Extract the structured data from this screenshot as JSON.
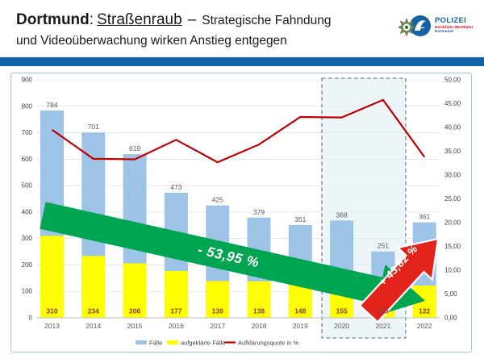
{
  "header": {
    "title_bold": "Dortmund",
    "title_colon": ":",
    "title_underlined": "Straßenraub",
    "title_dash": "–",
    "title_rest": "Strategische Fahndung",
    "title_line2": "und Videoüberwachung wirken Anstieg entgegen",
    "divider_color": "#1164a9"
  },
  "logo": {
    "org": "POLIZEI",
    "region": "Nordrhein-Westfalen",
    "city": "Dortmund",
    "blue": "#1464a5",
    "red": "#e2001a"
  },
  "chart_data": {
    "type": "bar",
    "subtype": "grouped overlay bars with secondary-axis line",
    "categories": [
      "2013",
      "2014",
      "2015",
      "2016",
      "2017",
      "2018",
      "2019",
      "2020",
      "2021",
      "2022"
    ],
    "series": [
      {
        "name": "Fälle",
        "type": "bar",
        "axis": "left",
        "color": "#9dc3e6",
        "values": [
          784,
          701,
          619,
          473,
          425,
          379,
          351,
          368,
          251,
          361
        ]
      },
      {
        "name": "aufgeklärte Fälle",
        "type": "bar",
        "axis": "left",
        "color": "#ffff00",
        "values": [
          310,
          234,
          206,
          177,
          139,
          138,
          148,
          155,
          115,
          122
        ]
      },
      {
        "name": "Aufklärungsquote in %",
        "type": "line",
        "axis": "right",
        "color": "#c00000",
        "values": [
          39.5,
          33.4,
          33.3,
          37.4,
          32.7,
          36.4,
          42.2,
          42.1,
          45.8,
          33.8
        ]
      }
    ],
    "left_axis": {
      "min": 0,
      "max": 900,
      "step": 100,
      "tick_labels": [
        "900",
        "800",
        "700",
        "600",
        "500",
        "400",
        "300",
        "200",
        "100",
        "0"
      ]
    },
    "right_axis": {
      "min": 0,
      "max": 50,
      "step": 5,
      "tick_labels": [
        "50,00",
        "45,00",
        "40,00",
        "35,00",
        "30,00",
        "25,00",
        "20,00",
        "15,00",
        "10,00",
        "5,00",
        "0,00"
      ]
    },
    "grid": true,
    "legend_position": "bottom",
    "annotations": {
      "down_arrow": {
        "label": "- 53,95 %",
        "color": "#00a551"
      },
      "up_arrow": {
        "label": "+ 43,82 %",
        "color": "#e2231c"
      },
      "highlight_box": {
        "years": [
          "2020",
          "2021"
        ],
        "fill": "#e3eef5",
        "border": "#7f7f7f"
      }
    },
    "value_label_colors": {
      "faelle": "#595959",
      "aufgeklaerte": "#943634"
    }
  }
}
